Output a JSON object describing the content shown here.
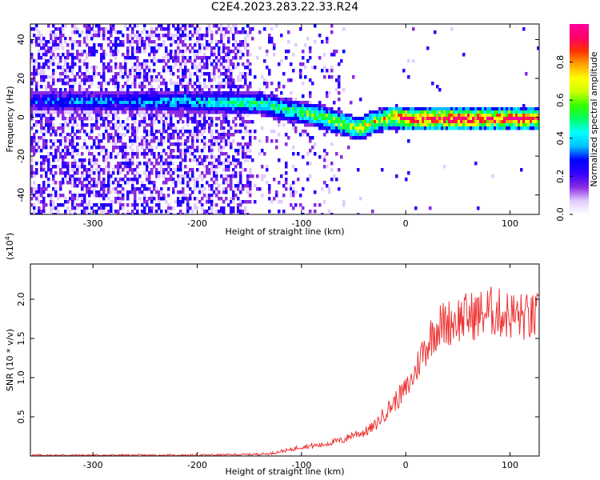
{
  "title": "C2E4.2023.283.22.33.R24",
  "chart_data": [
    {
      "type": "heatmap",
      "xlabel": "Height of straight line (km)",
      "ylabel": "Frequency (Hz)",
      "xlim": [
        -360,
        128
      ],
      "ylim": [
        -50,
        48
      ],
      "xticks": [
        -300,
        -200,
        -100,
        0,
        100
      ],
      "yticks": [
        -40,
        -20,
        0,
        20,
        40
      ],
      "colorbar": {
        "label": "Normalized spectral amplitude",
        "range": [
          0.0,
          1.0
        ],
        "ticks": [
          0.0,
          0.2,
          0.4,
          0.6,
          0.8
        ],
        "colors": [
          "#ffffff",
          "#e0ccff",
          "#8a2be2",
          "#3300ff",
          "#0000ff",
          "#00bfff",
          "#00ffff",
          "#00ff66",
          "#33ff00",
          "#ccff00",
          "#ffff00",
          "#ffa500",
          "#ff3300",
          "#ff0066",
          "#ff0099"
        ]
      },
      "band": {
        "x": [
          -360,
          -320,
          -280,
          -240,
          -200,
          -160,
          -140,
          -120,
          -100,
          -80,
          -60,
          -45,
          -30,
          -10,
          0,
          20,
          60,
          100,
          128
        ],
        "center_frequency": [
          9,
          9,
          9,
          9,
          9,
          8,
          8,
          5,
          3,
          1,
          -3,
          -5,
          -1,
          1,
          0,
          0,
          0,
          0,
          0
        ],
        "amplitude": [
          0.3,
          0.35,
          0.32,
          0.38,
          0.42,
          0.48,
          0.5,
          0.52,
          0.55,
          0.6,
          0.65,
          0.7,
          0.72,
          0.8,
          0.9,
          0.92,
          0.95,
          0.93,
          0.9
        ]
      },
      "grid": false
    },
    {
      "type": "line",
      "xlabel": "Height of straight line (km)",
      "ylabel": "SNR (10 * v/v)",
      "y_multiplier_label": "(x10",
      "y_multiplier_exponent": "4",
      "y_multiplier_close": ")",
      "xlim": [
        -360,
        128
      ],
      "ylim": [
        0,
        2.45
      ],
      "xticks": [
        -300,
        -200,
        -100,
        0,
        100
      ],
      "yticks": [
        0.5,
        1.0,
        1.5,
        2.0
      ],
      "ytick_labels": [
        "0.5",
        "1.0",
        "1.5",
        "2.0"
      ],
      "series": [
        {
          "color": "#ee3333",
          "x": [
            -360,
            -300,
            -250,
            -200,
            -150,
            -130,
            -120,
            -110,
            -100,
            -90,
            -80,
            -70,
            -60,
            -50,
            -40,
            -30,
            -20,
            -10,
            0,
            5,
            10,
            15,
            20,
            25,
            30,
            40,
            50,
            60,
            70,
            80,
            90,
            100,
            110,
            120,
            128
          ],
          "values": [
            0.01,
            0.01,
            0.01,
            0.01,
            0.02,
            0.03,
            0.06,
            0.08,
            0.12,
            0.13,
            0.14,
            0.18,
            0.2,
            0.28,
            0.3,
            0.38,
            0.55,
            0.7,
            0.85,
            0.95,
            1.1,
            1.3,
            1.4,
            1.55,
            1.65,
            1.7,
            1.75,
            1.78,
            1.8,
            1.85,
            1.82,
            1.8,
            1.78,
            1.75,
            1.78
          ]
        }
      ],
      "grid": false
    }
  ]
}
